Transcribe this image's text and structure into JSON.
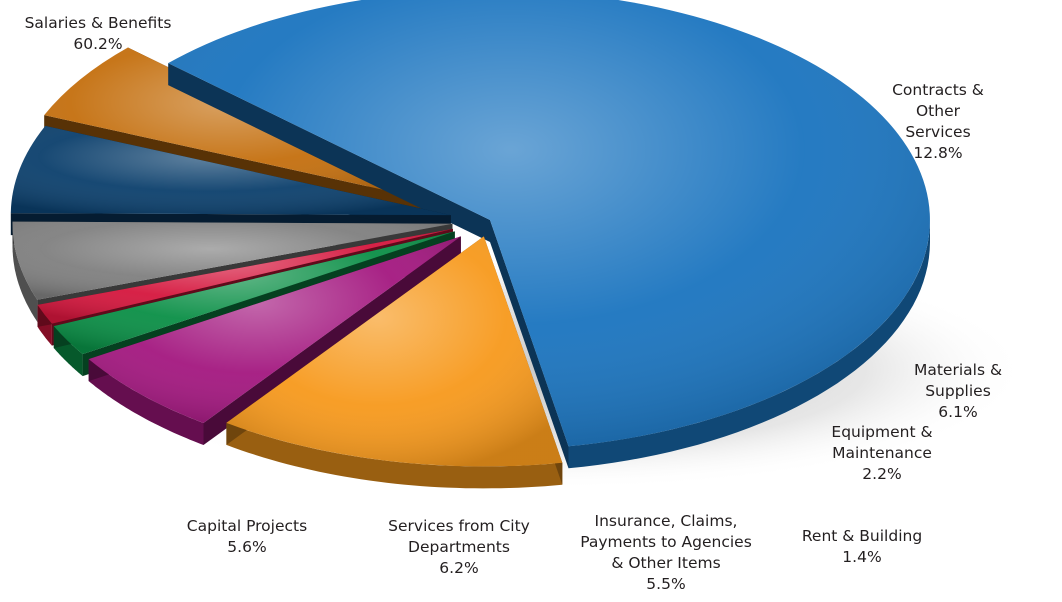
{
  "chart_data": {
    "type": "pie",
    "title": "",
    "categories": [
      "Salaries & Benefits",
      "Contracts & Other\nServices",
      "Materials & Supplies",
      "Equipment &\nMaintenance",
      "Rent & Building",
      "Insurance, Claims,\nPayments to Agencies\n& Other Items",
      "Services from City\nDepartments",
      "Capital Projects"
    ],
    "values": [
      60.2,
      12.8,
      6.1,
      2.2,
      1.4,
      5.5,
      6.2,
      5.6
    ],
    "value_labels": [
      "60.2%",
      "12.8%",
      "6.1%",
      "2.2%",
      "1.4%",
      "5.5%",
      "6.2%",
      "5.6%"
    ],
    "colors": [
      "#1a74bf",
      "#f7991c",
      "#a3177f",
      "#0a8f46",
      "#d5163d",
      "#7f7f7f",
      "#0b3f6c",
      "#c46f0e"
    ],
    "exploded": [
      true,
      true,
      true,
      true,
      true,
      true,
      true,
      true
    ],
    "legend": "none",
    "style": "3d-exploded-pie"
  }
}
